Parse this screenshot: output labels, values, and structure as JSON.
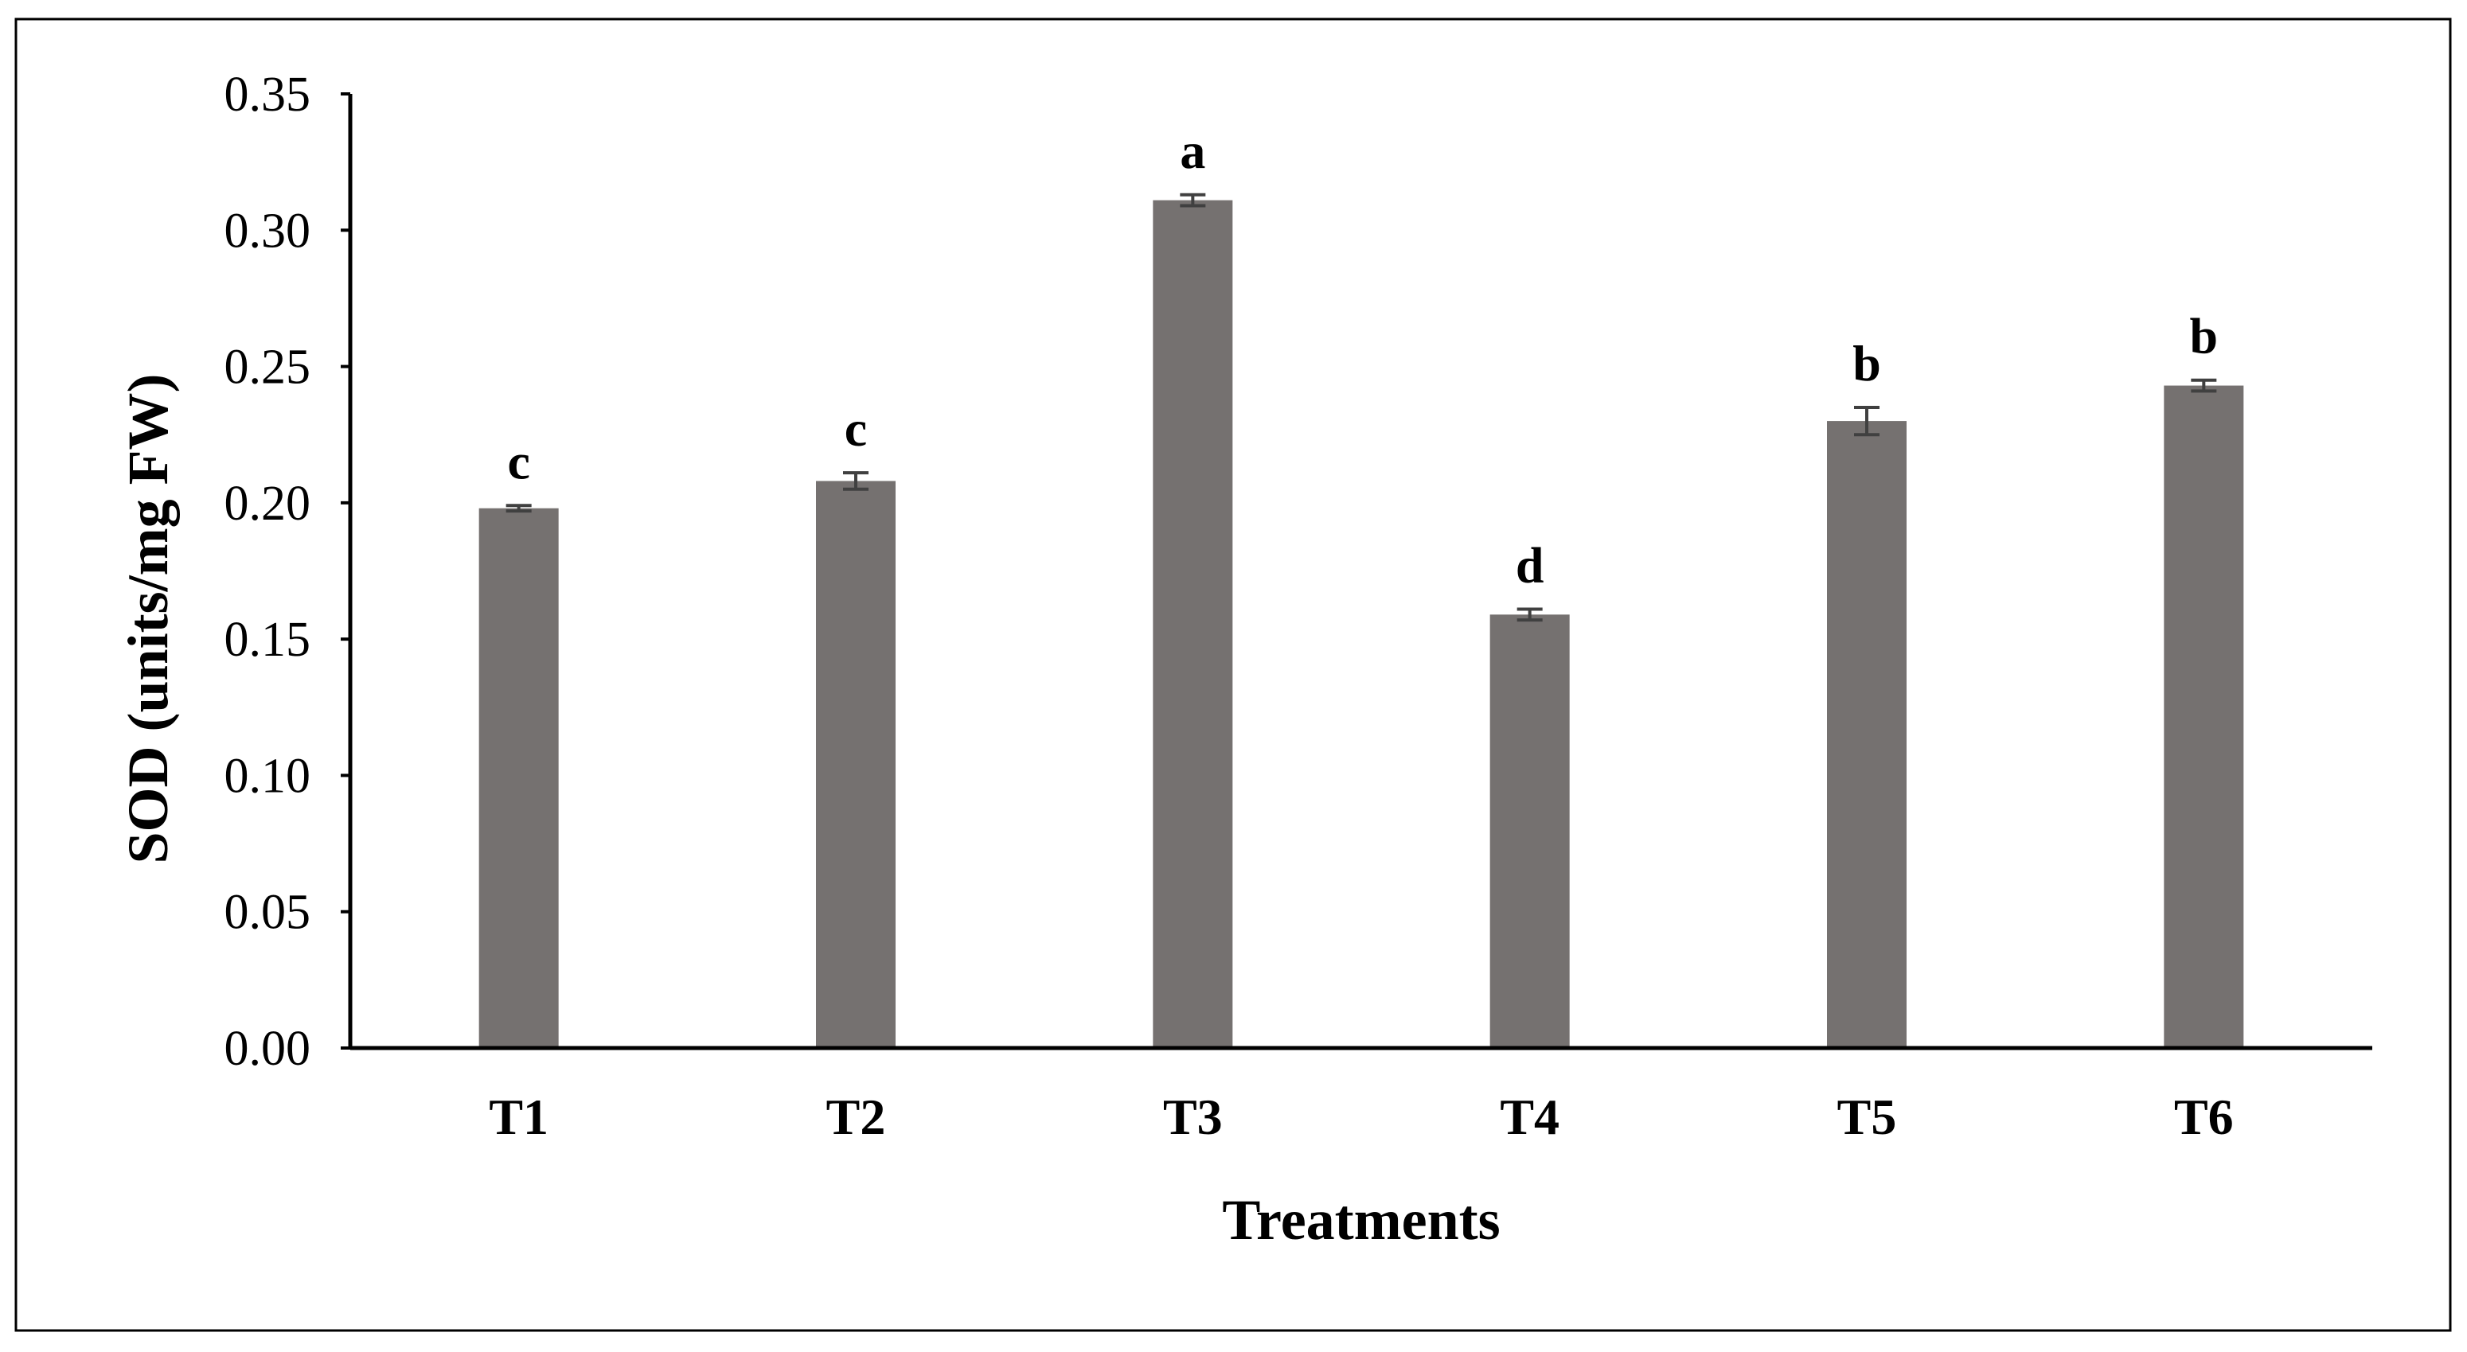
{
  "colors": {
    "bar": "#757170",
    "error_bar": "#404040",
    "axis": "#000000",
    "frame": "#000000",
    "background": "#ffffff"
  },
  "chart_data": {
    "type": "bar",
    "title": "",
    "xlabel": "Treatments",
    "ylabel": "SOD (units/mg FW)",
    "categories": [
      "T1",
      "T2",
      "T3",
      "T4",
      "T5",
      "T6"
    ],
    "values": [
      0.198,
      0.208,
      0.311,
      0.159,
      0.23,
      0.243
    ],
    "errors": [
      0.001,
      0.003,
      0.002,
      0.002,
      0.005,
      0.002
    ],
    "significance_letters": [
      "c",
      "c",
      "a",
      "d",
      "b",
      "b"
    ],
    "ylim": [
      0,
      0.35
    ],
    "yticks": [
      0.0,
      0.05,
      0.1,
      0.15,
      0.2,
      0.25,
      0.3,
      0.35
    ],
    "ytick_labels": [
      "0.00",
      "0.05",
      "0.10",
      "0.15",
      "0.20",
      "0.25",
      "0.30",
      "0.35"
    ],
    "grid": false,
    "legend": "none"
  }
}
